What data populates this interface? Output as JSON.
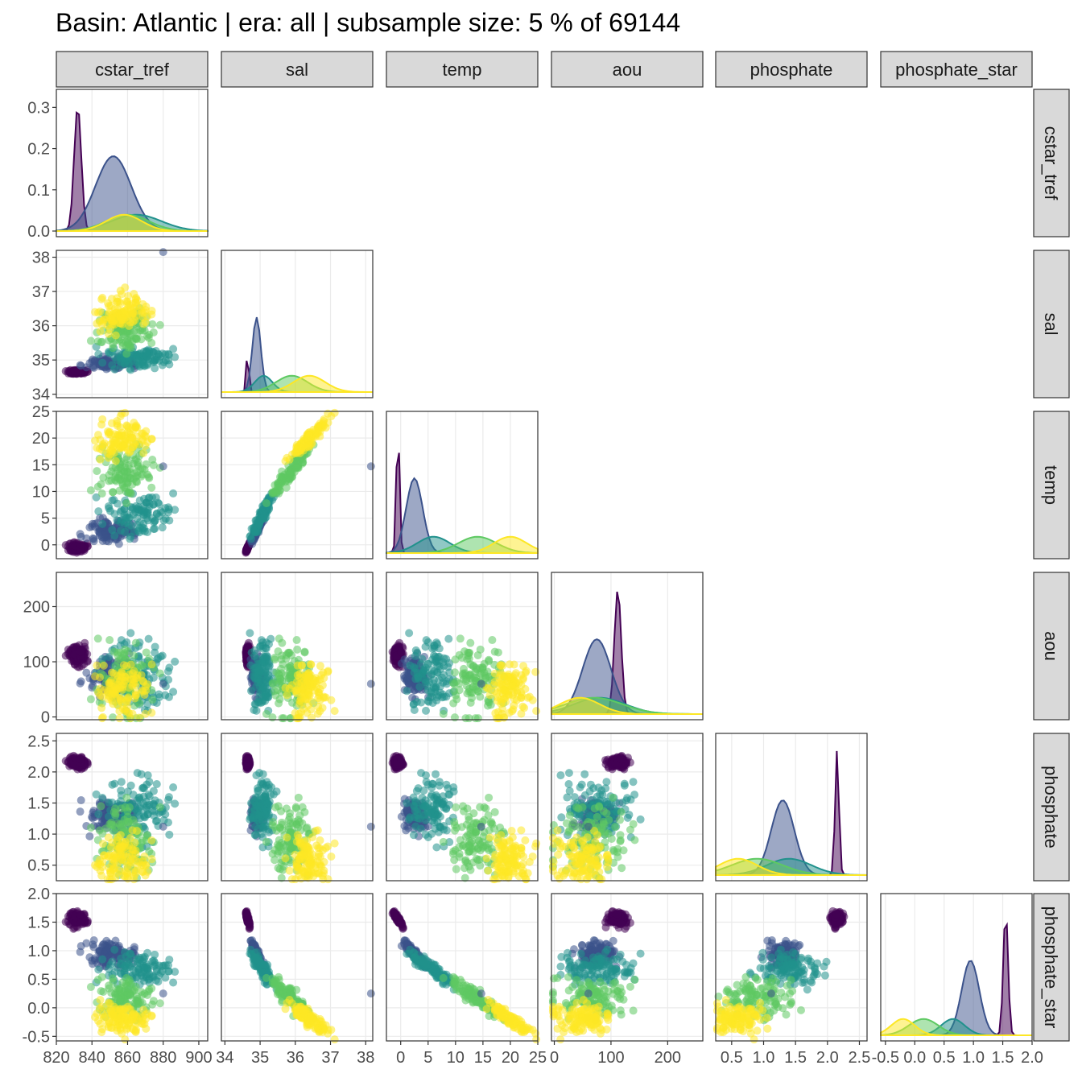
{
  "chart_data": {
    "type": "scatter",
    "title": "Basin: Atlantic | era: all | subsample size: 5 % of 69144",
    "variables": [
      "cstar_tref",
      "sal",
      "temp",
      "aou",
      "phosphate",
      "phosphate_star"
    ],
    "axes": {
      "cstar_tref": {
        "range": [
          820,
          905
        ],
        "ticks": [
          820,
          840,
          860,
          880,
          900
        ],
        "tick_labels": [
          "820",
          "840",
          "860",
          "880",
          "900"
        ]
      },
      "sal": {
        "range": [
          33.9,
          38.2
        ],
        "ticks": [
          34,
          35,
          36,
          37,
          38
        ],
        "tick_labels": [
          "34",
          "35",
          "36",
          "37",
          "38"
        ]
      },
      "temp": {
        "range": [
          -2.6,
          25
        ],
        "ticks": [
          0,
          5,
          10,
          15,
          20,
          25
        ],
        "tick_labels": [
          "0",
          "5",
          "10",
          "15",
          "20",
          "25"
        ]
      },
      "aou": {
        "range": [
          -5,
          262
        ],
        "ticks": [
          0,
          100,
          200
        ],
        "tick_labels": [
          "0",
          "100",
          "200"
        ]
      },
      "phosphate": {
        "range": [
          0.25,
          2.62
        ],
        "ticks": [
          0.5,
          1.0,
          1.5,
          2.0,
          2.5
        ],
        "tick_labels": [
          "0.5",
          "1.0",
          "1.5",
          "2.0",
          "2.5"
        ]
      },
      "phosphate_star": {
        "range": [
          -0.58,
          2.0
        ],
        "ticks": [
          -0.5,
          0.0,
          0.5,
          1.0,
          1.5,
          2.0
        ],
        "tick_labels": [
          "-0.5",
          "0.0",
          "0.5",
          "1.0",
          "1.5",
          "2.0"
        ]
      }
    },
    "diagonal_density_ylim": {
      "cstar_tref": [
        0,
        0.33
      ],
      "y_ticks": [
        0.0,
        0.1,
        0.2,
        0.3
      ],
      "y_tick_labels": [
        "0.0",
        "0.1",
        "0.2",
        "0.3"
      ]
    },
    "grid": true,
    "palette": [
      "#440154",
      "#3b528b",
      "#21918c",
      "#5ec962",
      "#fde725"
    ],
    "groups": [
      {
        "water_mass": 1,
        "centroid": {
          "cstar_tref": 832,
          "sal": 34.65,
          "temp": -0.5,
          "aou": 112,
          "phosphate": 2.15,
          "phosphate_star": 1.55
        }
      },
      {
        "water_mass": 2,
        "centroid": {
          "cstar_tref": 852,
          "sal": 34.9,
          "temp": 2.5,
          "aou": 75,
          "phosphate": 1.3,
          "phosphate_star": 0.95
        }
      },
      {
        "water_mass": 3,
        "centroid": {
          "cstar_tref": 865,
          "sal": 35.1,
          "temp": 6,
          "aou": 80,
          "phosphate": 1.4,
          "phosphate_star": 0.65
        }
      },
      {
        "water_mass": 4,
        "centroid": {
          "cstar_tref": 860,
          "sal": 35.9,
          "temp": 14,
          "aou": 70,
          "phosphate": 0.9,
          "phosphate_star": 0.15
        }
      },
      {
        "water_mass": 5,
        "centroid": {
          "cstar_tref": 858,
          "sal": 36.4,
          "temp": 20,
          "aou": 45,
          "phosphate": 0.6,
          "phosphate_star": -0.2
        }
      }
    ],
    "outlier": {
      "cstar_tref": 880,
      "sal": 38.15,
      "temp": 14.7,
      "aou": 60,
      "phosphate": 1.12,
      "phosphate_star": 0.25
    }
  }
}
